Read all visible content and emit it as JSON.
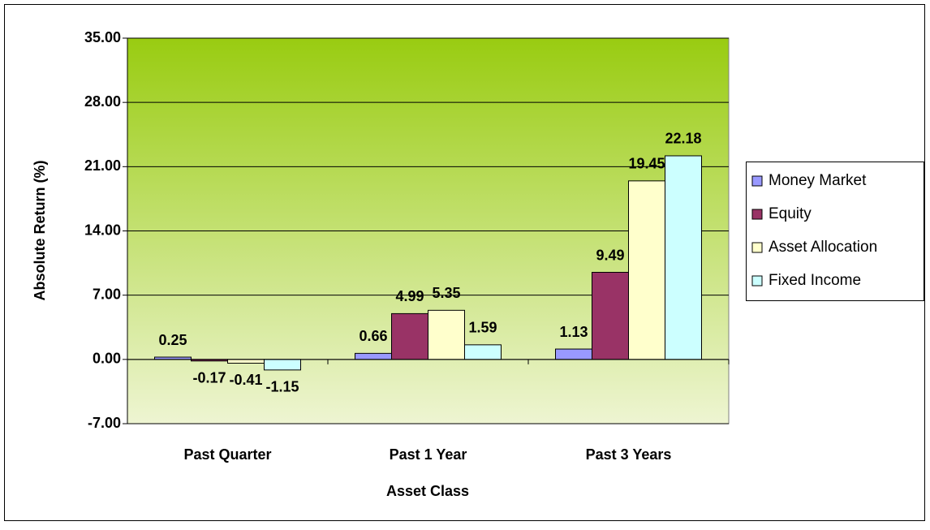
{
  "chart_data": {
    "type": "bar",
    "x_label": "Asset Class",
    "y_label": "Absolute Return (%)",
    "categories": [
      "Past Quarter",
      "Past 1 Year",
      "Past 3 Years"
    ],
    "series": [
      {
        "name": "Money Market",
        "color": "#9999ff",
        "values": [
          0.25,
          0.66,
          1.13
        ]
      },
      {
        "name": "Equity",
        "color": "#993366",
        "values": [
          -0.17,
          4.99,
          9.49
        ]
      },
      {
        "name": "Asset Allocation",
        "color": "#ffffcc",
        "values": [
          -0.41,
          5.35,
          19.45
        ]
      },
      {
        "name": "Fixed Income",
        "color": "#ccffff",
        "values": [
          -1.15,
          1.59,
          22.18
        ]
      }
    ],
    "ylim": [
      -7,
      35
    ],
    "yticks": [
      {
        "value": -7,
        "label": "-7.00"
      },
      {
        "value": 0,
        "label": "0.00"
      },
      {
        "value": 7,
        "label": "7.00"
      },
      {
        "value": 14,
        "label": "14.00"
      },
      {
        "value": 21,
        "label": "21.00"
      },
      {
        "value": 28,
        "label": "28.00"
      },
      {
        "value": 35,
        "label": "35.00"
      }
    ],
    "grid": true,
    "legend": "right"
  }
}
